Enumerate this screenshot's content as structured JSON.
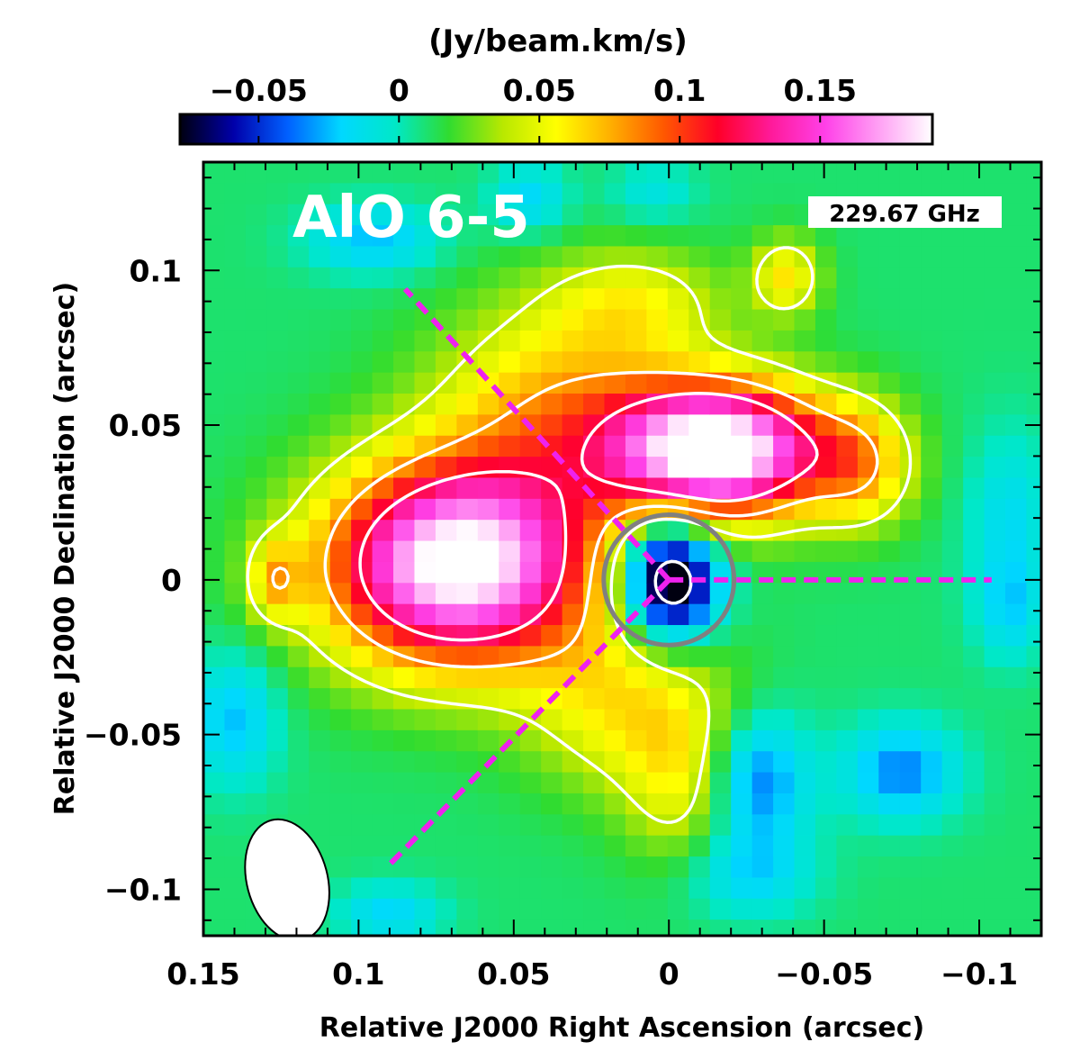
{
  "chart_data": {
    "type": "heatmap",
    "title": "AlO 6-5",
    "frequency_label": "229.67 GHz",
    "xlabel": "Relative J2000 Right Ascension (arcsec)",
    "ylabel": "Relative J2000 Declination (arcsec)",
    "xlim": [
      0.15,
      -0.12
    ],
    "ylim": [
      -0.115,
      0.135
    ],
    "x_ticks": [
      0.15,
      0.1,
      0.05,
      0,
      -0.05,
      -0.1
    ],
    "x_tick_labels": [
      "0.15",
      "0.1",
      "0.05",
      "0",
      "−0.05",
      "−0.1"
    ],
    "y_ticks": [
      0.1,
      0.05,
      0,
      -0.05,
      -0.1
    ],
    "y_tick_labels": [
      "0.1",
      "0.05",
      "0",
      "−0.05",
      "−0.1"
    ],
    "colorbar": {
      "label": "(Jy/beam.km/s)",
      "range": [
        -0.078,
        0.19
      ],
      "ticks": [
        -0.05,
        0,
        0.05,
        0.1,
        0.15
      ],
      "tick_labels": [
        "−0.05",
        "0",
        "0.05",
        "0.1",
        "0.15"
      ],
      "colormap": [
        "#000010",
        "#0000aa",
        "#0060ff",
        "#00d8ff",
        "#00e8c8",
        "#30dc30",
        "#b8e800",
        "#ffff00",
        "#ffb000",
        "#ff5800",
        "#ff0028",
        "#ff1a9a",
        "#ff40e8",
        "#ffa0f4",
        "#ffffff"
      ]
    },
    "background_level": 0.01,
    "emission_components": [
      {
        "ra": 0.068,
        "dec": 0.005,
        "peak": 0.19,
        "sigma_ra": 0.03,
        "sigma_dec": 0.023,
        "note": "east peak"
      },
      {
        "ra": -0.016,
        "dec": 0.042,
        "peak": 0.2,
        "sigma_ra": 0.024,
        "sigma_dec": 0.015,
        "note": "north-west peak"
      },
      {
        "ra": 0.035,
        "dec": 0.055,
        "peak": 0.06,
        "sigma_ra": 0.028,
        "sigma_dec": 0.025
      },
      {
        "ra": 0.015,
        "dec": -0.04,
        "peak": 0.045,
        "sigma_ra": 0.022,
        "sigma_dec": 0.02
      },
      {
        "ra": -0.006,
        "dec": -0.065,
        "peak": 0.04,
        "sigma_ra": 0.014,
        "sigma_dec": 0.02
      },
      {
        "ra": -0.038,
        "dec": 0.098,
        "peak": 0.05,
        "sigma_ra": 0.008,
        "sigma_dec": 0.009
      },
      {
        "ra": -0.062,
        "dec": 0.037,
        "peak": 0.055,
        "sigma_ra": 0.012,
        "sigma_dec": 0.014
      },
      {
        "ra": 0.127,
        "dec": 0.0,
        "peak": 0.045,
        "sigma_ra": 0.006,
        "sigma_dec": 0.009
      },
      {
        "ra": 0.01,
        "dec": 0.09,
        "peak": 0.035,
        "sigma_ra": 0.02,
        "sigma_dec": 0.012
      },
      {
        "ra": 0.0,
        "dec": 0.0,
        "peak": -0.12,
        "sigma_ra": 0.011,
        "sigma_dec": 0.014,
        "note": "absorption at continuum centre"
      },
      {
        "ra": -0.027,
        "dec": -0.065,
        "peak": -0.055,
        "sigma_ra": 0.012,
        "sigma_dec": 0.015
      },
      {
        "ra": -0.075,
        "dec": -0.062,
        "peak": -0.045,
        "sigma_ra": 0.013,
        "sigma_dec": 0.011
      },
      {
        "ra": 0.14,
        "dec": -0.045,
        "peak": -0.035,
        "sigma_ra": 0.01,
        "sigma_dec": 0.015
      },
      {
        "ra": 0.095,
        "dec": 0.11,
        "peak": -0.035,
        "sigma_ra": 0.015,
        "sigma_dec": 0.008
      },
      {
        "ra": 0.045,
        "dec": 0.123,
        "peak": -0.03,
        "sigma_ra": 0.009,
        "sigma_dec": 0.008
      },
      {
        "ra": -0.025,
        "dec": -0.095,
        "peak": -0.03,
        "sigma_ra": 0.015,
        "sigma_dec": 0.01
      },
      {
        "ra": -0.11,
        "dec": 0.02,
        "peak": -0.025,
        "sigma_ra": 0.01,
        "sigma_dec": 0.02
      },
      {
        "ra": -0.11,
        "dec": -0.01,
        "peak": -0.025,
        "sigma_ra": 0.008,
        "sigma_dec": 0.012
      },
      {
        "ra": 0.09,
        "dec": -0.108,
        "peak": -0.03,
        "sigma_ra": 0.012,
        "sigma_dec": 0.007
      },
      {
        "ra": 0.005,
        "dec": 0.125,
        "peak": -0.02,
        "sigma_ra": 0.01,
        "sigma_dec": 0.007
      }
    ],
    "contour_levels": [
      0.04,
      0.08,
      0.12
    ],
    "negative_contour_levels": [
      -0.07
    ],
    "continuum_ring": {
      "ra": 0.0,
      "dec": 0.0,
      "radius": 0.021,
      "color": "#808080"
    },
    "guide_lines": {
      "color": "#ee22ee",
      "center": [
        0.0,
        0.0
      ],
      "endpoints": [
        [
          0.085,
          0.094
        ],
        [
          -0.104,
          0.0
        ],
        [
          0.091,
          -0.093
        ]
      ]
    },
    "beam": {
      "ra": 0.123,
      "dec": -0.097,
      "major_axis": 0.04,
      "minor_axis": 0.026,
      "position_angle_deg": -15
    }
  }
}
